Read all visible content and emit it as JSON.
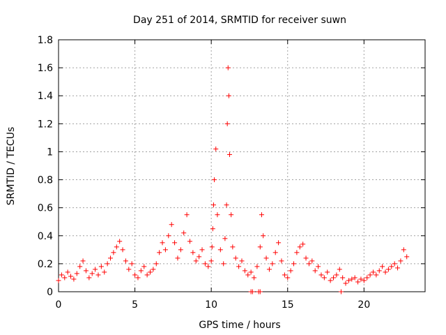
{
  "chart_data": {
    "type": "scatter",
    "title": "Day 251 of 2014, SRMTID for receiver suwn",
    "xlabel": "GPS time / hours",
    "ylabel": "SRMTID / TECUs",
    "xlim": [
      0,
      24
    ],
    "ylim": [
      0,
      1.8
    ],
    "xticks": [
      0,
      5,
      10,
      15,
      20
    ],
    "xtick_labels": [
      "0",
      "5",
      "10",
      "15",
      "20"
    ],
    "yticks": [
      0,
      0.2,
      0.4,
      0.6,
      0.8,
      1,
      1.2,
      1.4,
      1.6,
      1.8
    ],
    "ytick_labels": [
      "0",
      "0.2",
      "0.4",
      "0.6",
      "0.8",
      "1",
      "1.2",
      "1.4",
      "1.6",
      "1.8"
    ],
    "grid": true,
    "marker": "+",
    "series_color": "#ff0000",
    "series": [
      {
        "name": "SRMTID",
        "x": [
          0.0,
          0.2,
          0.4,
          0.6,
          0.8,
          1.0,
          1.2,
          1.4,
          1.6,
          1.8,
          2.0,
          2.2,
          2.4,
          2.6,
          2.8,
          3.0,
          3.2,
          3.4,
          3.6,
          3.8,
          4.0,
          4.2,
          4.4,
          4.6,
          4.8,
          5.0,
          5.2,
          5.4,
          5.6,
          5.8,
          6.0,
          6.2,
          6.4,
          6.6,
          6.8,
          7.0,
          7.2,
          7.4,
          7.6,
          7.8,
          8.0,
          8.2,
          8.4,
          8.6,
          8.8,
          9.0,
          9.2,
          9.4,
          9.6,
          9.8,
          10.0,
          10.05,
          10.1,
          10.15,
          10.2,
          10.3,
          10.4,
          10.6,
          10.8,
          10.9,
          11.0,
          11.05,
          11.1,
          11.15,
          11.2,
          11.3,
          11.4,
          11.6,
          11.8,
          12.0,
          12.2,
          12.4,
          12.6,
          12.8,
          13.0,
          13.2,
          13.3,
          13.4,
          13.6,
          13.8,
          14.0,
          14.2,
          14.4,
          14.6,
          14.8,
          15.0,
          15.2,
          15.4,
          15.6,
          15.8,
          16.0,
          16.2,
          16.4,
          16.6,
          16.8,
          17.0,
          17.2,
          17.4,
          17.6,
          17.8,
          18.0,
          18.2,
          18.4,
          18.6,
          18.8,
          19.0,
          19.2,
          19.4,
          19.6,
          19.8,
          20.0,
          20.2,
          20.4,
          20.6,
          20.8,
          21.0,
          21.2,
          21.4,
          21.6,
          21.8,
          22.0,
          22.2,
          22.4,
          22.6,
          22.8,
          12.6,
          12.7,
          13.1,
          13.2,
          18.5
        ],
        "y": [
          0.08,
          0.12,
          0.1,
          0.14,
          0.11,
          0.09,
          0.13,
          0.18,
          0.22,
          0.15,
          0.1,
          0.13,
          0.16,
          0.12,
          0.18,
          0.14,
          0.2,
          0.24,
          0.28,
          0.32,
          0.36,
          0.3,
          0.22,
          0.16,
          0.2,
          0.12,
          0.1,
          0.15,
          0.18,
          0.12,
          0.14,
          0.16,
          0.2,
          0.28,
          0.35,
          0.3,
          0.4,
          0.48,
          0.35,
          0.24,
          0.3,
          0.42,
          0.55,
          0.36,
          0.28,
          0.22,
          0.25,
          0.3,
          0.2,
          0.18,
          0.22,
          0.32,
          0.45,
          0.62,
          0.8,
          1.02,
          0.55,
          0.3,
          0.2,
          0.38,
          0.62,
          1.2,
          1.6,
          1.4,
          0.98,
          0.55,
          0.32,
          0.24,
          0.18,
          0.22,
          0.15,
          0.12,
          0.14,
          0.1,
          0.18,
          0.32,
          0.55,
          0.4,
          0.24,
          0.16,
          0.2,
          0.28,
          0.35,
          0.22,
          0.12,
          0.1,
          0.15,
          0.2,
          0.28,
          0.32,
          0.34,
          0.24,
          0.2,
          0.22,
          0.15,
          0.18,
          0.12,
          0.1,
          0.14,
          0.08,
          0.1,
          0.12,
          0.16,
          0.1,
          0.06,
          0.08,
          0.09,
          0.1,
          0.07,
          0.09,
          0.08,
          0.1,
          0.12,
          0.14,
          0.12,
          0.15,
          0.18,
          0.14,
          0.16,
          0.18,
          0.2,
          0.17,
          0.22,
          0.3,
          0.25,
          0.0,
          0.0,
          0.0,
          0.0,
          0.0
        ]
      }
    ]
  }
}
